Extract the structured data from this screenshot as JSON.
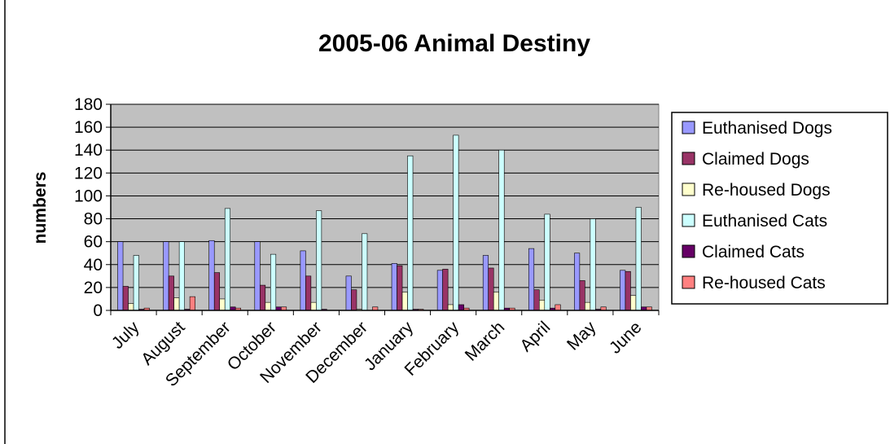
{
  "chart_data": {
    "type": "bar",
    "title": "2005-06 Animal Destiny",
    "xlabel": "",
    "ylabel": "numbers",
    "ylim": [
      0,
      180
    ],
    "yticks": [
      0,
      20,
      40,
      60,
      80,
      100,
      120,
      140,
      160,
      180
    ],
    "grid": "horizontal",
    "legend_position": "right",
    "categories": [
      "July",
      "August",
      "September",
      "October",
      "November",
      "December",
      "January",
      "February",
      "March",
      "April",
      "May",
      "June"
    ],
    "series": [
      {
        "name": "Euthanised Dogs",
        "color": "#9999ff",
        "values": [
          60,
          60,
          61,
          60,
          52,
          30,
          41,
          35,
          48,
          54,
          50,
          35
        ]
      },
      {
        "name": "Claimed Dogs",
        "color": "#993366",
        "values": [
          21,
          30,
          33,
          22,
          30,
          18,
          39,
          36,
          37,
          18,
          26,
          34
        ]
      },
      {
        "name": "Re-housed Dogs",
        "color": "#ffffcc",
        "values": [
          6,
          11,
          10,
          7,
          7,
          1,
          16,
          5,
          16,
          9,
          7,
          13
        ]
      },
      {
        "name": "Euthanised Cats",
        "color": "#ccffff",
        "values": [
          48,
          60,
          89,
          49,
          87,
          67,
          135,
          153,
          140,
          84,
          80,
          90
        ]
      },
      {
        "name": "Claimed Cats",
        "color": "#660066",
        "values": [
          1,
          1,
          3,
          3,
          1,
          0,
          1,
          5,
          2,
          2,
          1,
          3
        ]
      },
      {
        "name": "Re-housed Cats",
        "color": "#ff8080",
        "values": [
          2,
          12,
          2,
          3,
          0,
          3,
          1,
          2,
          2,
          5,
          3,
          3
        ]
      }
    ]
  },
  "colors": {
    "plot_background": "#c0c0c0",
    "gridline": "#000000",
    "bar_stroke": "#000000"
  }
}
